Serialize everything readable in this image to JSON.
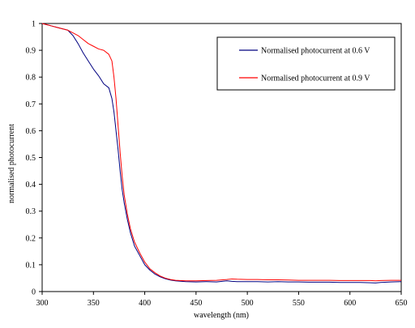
{
  "chart_data": {
    "type": "line",
    "title": "",
    "xlabel": "wavelength (nm)",
    "ylabel": "normalised photocurrent",
    "xlim": [
      300,
      650
    ],
    "ylim": [
      0,
      1
    ],
    "xticks": [
      "300",
      "350",
      "400",
      "450",
      "500",
      "550",
      "600",
      "650"
    ],
    "yticks": [
      "0",
      "0.1",
      "0.2",
      "0.3",
      "0.4",
      "0.5",
      "0.6",
      "0.7",
      "0.8",
      "0.9",
      "1"
    ],
    "grid": false,
    "legend_position": "top-right",
    "series": [
      {
        "name": "Normalised photocurrent at 0.6 V",
        "color": "#000080",
        "x": [
          300,
          305,
          310,
          315,
          320,
          325,
          330,
          335,
          340,
          345,
          350,
          355,
          360,
          365,
          368,
          370,
          372,
          374,
          376,
          378,
          380,
          383,
          386,
          390,
          395,
          400,
          405,
          410,
          415,
          420,
          425,
          430,
          440,
          450,
          460,
          470,
          480,
          485,
          490,
          500,
          510,
          520,
          530,
          540,
          550,
          560,
          570,
          580,
          590,
          600,
          610,
          620,
          625,
          630,
          640,
          650
        ],
        "y": [
          1.0,
          0.995,
          0.99,
          0.985,
          0.98,
          0.975,
          0.955,
          0.925,
          0.89,
          0.86,
          0.83,
          0.805,
          0.775,
          0.76,
          0.72,
          0.67,
          0.6,
          0.53,
          0.45,
          0.38,
          0.33,
          0.27,
          0.22,
          0.17,
          0.135,
          0.1,
          0.08,
          0.065,
          0.055,
          0.048,
          0.043,
          0.04,
          0.037,
          0.036,
          0.037,
          0.036,
          0.04,
          0.038,
          0.037,
          0.037,
          0.037,
          0.036,
          0.037,
          0.036,
          0.036,
          0.035,
          0.035,
          0.035,
          0.034,
          0.034,
          0.034,
          0.033,
          0.032,
          0.034,
          0.036,
          0.037
        ]
      },
      {
        "name": "Normalised photocurrent at 0.9 V",
        "color": "#ff0000",
        "x": [
          300,
          305,
          310,
          315,
          320,
          325,
          330,
          335,
          340,
          345,
          350,
          355,
          360,
          365,
          368,
          370,
          372,
          374,
          376,
          378,
          380,
          383,
          386,
          390,
          395,
          400,
          405,
          410,
          415,
          420,
          425,
          430,
          440,
          450,
          460,
          470,
          480,
          485,
          490,
          500,
          510,
          520,
          530,
          540,
          550,
          560,
          570,
          580,
          590,
          600,
          610,
          620,
          625,
          630,
          640,
          650
        ],
        "y": [
          1.0,
          0.995,
          0.99,
          0.985,
          0.98,
          0.975,
          0.965,
          0.955,
          0.94,
          0.925,
          0.915,
          0.905,
          0.9,
          0.885,
          0.86,
          0.8,
          0.72,
          0.62,
          0.52,
          0.43,
          0.36,
          0.29,
          0.235,
          0.185,
          0.145,
          0.11,
          0.085,
          0.07,
          0.058,
          0.05,
          0.045,
          0.042,
          0.04,
          0.04,
          0.041,
          0.042,
          0.045,
          0.047,
          0.046,
          0.045,
          0.045,
          0.044,
          0.044,
          0.043,
          0.042,
          0.042,
          0.042,
          0.042,
          0.041,
          0.041,
          0.041,
          0.041,
          0.04,
          0.041,
          0.042,
          0.042
        ]
      }
    ]
  }
}
